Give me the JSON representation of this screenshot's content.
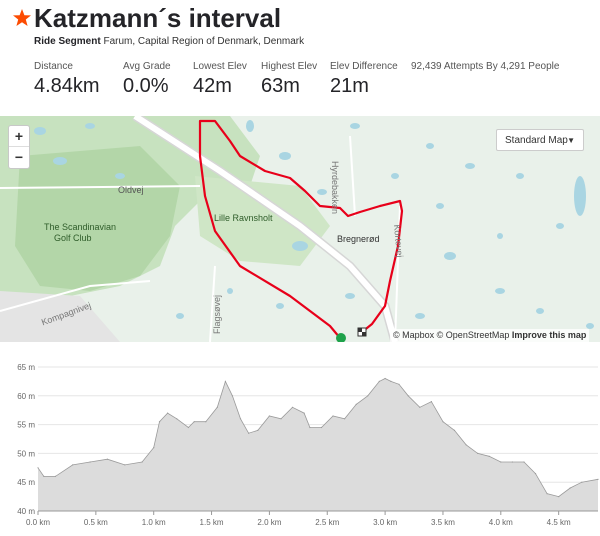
{
  "segment": {
    "title": "Katzmann´s interval",
    "type_label": "Ride Segment",
    "location": "Farum, Capital Region of Denmark, Denmark"
  },
  "stats": [
    {
      "label": "Distance",
      "value": "4.84km"
    },
    {
      "label": "Avg Grade",
      "value": "0.0%"
    },
    {
      "label": "Lowest Elev",
      "value": "42m"
    },
    {
      "label": "Highest Elev",
      "value": "63m"
    },
    {
      "label": "Elev Difference",
      "value": "21m"
    }
  ],
  "attempts": "92,439 Attempts By 4,291 People",
  "map": {
    "zoom_in": "+",
    "zoom_out": "−",
    "style_select": "Standard Map",
    "labels": {
      "oldvej": "Oldvej",
      "golf1": "The Scandinavian",
      "golf2": "Golf Club",
      "lille": "Lille Ravnsholt",
      "bregnerod": "Bregnerød",
      "hyrde": "Hyrdebakken",
      "flagvej": "Flagsøvej",
      "kompagni": "Kompagnivej",
      "kortevej": "Kortevej"
    },
    "attribution": {
      "mapbox": "© Mapbox",
      "osm": "© OpenStreetMap",
      "improve": "Improve this map"
    },
    "colors": {
      "route": "#e8001a",
      "start": "#1ea24a",
      "water": "#a8d4e0",
      "forest": "#bcdcb4"
    }
  },
  "chart_data": {
    "type": "area",
    "xlabel": "",
    "ylabel": "",
    "xlim": [
      0,
      4.84
    ],
    "ylim": [
      40,
      65
    ],
    "x_ticks": [
      "0.0 km",
      "0.5 km",
      "1.0 km",
      "1.5 km",
      "2.0 km",
      "2.5 km",
      "3.0 km",
      "3.5 km",
      "4.0 km",
      "4.5 km"
    ],
    "y_ticks": [
      "40 m",
      "45 m",
      "50 m",
      "55 m",
      "60 m",
      "65 m"
    ],
    "grid": true,
    "x": [
      0.0,
      0.05,
      0.15,
      0.3,
      0.45,
      0.6,
      0.75,
      0.9,
      1.0,
      1.05,
      1.12,
      1.2,
      1.3,
      1.35,
      1.45,
      1.55,
      1.62,
      1.68,
      1.75,
      1.82,
      1.9,
      2.0,
      2.1,
      2.2,
      2.3,
      2.35,
      2.45,
      2.55,
      2.65,
      2.75,
      2.85,
      2.95,
      3.0,
      3.05,
      3.12,
      3.2,
      3.3,
      3.4,
      3.5,
      3.6,
      3.7,
      3.8,
      3.9,
      4.0,
      4.1,
      4.2,
      4.3,
      4.4,
      4.5,
      4.6,
      4.7,
      4.84
    ],
    "y": [
      47.5,
      46,
      46,
      48,
      48.5,
      49,
      48,
      48.5,
      51,
      55.5,
      57,
      56,
      54.5,
      55.5,
      55.5,
      58,
      62.5,
      60,
      56,
      53.5,
      54,
      56.5,
      56,
      58,
      57,
      54.5,
      54.5,
      56.5,
      56,
      58.5,
      60,
      62.5,
      63,
      62.5,
      62,
      60,
      58,
      59,
      55.5,
      54,
      51.5,
      50,
      49.5,
      48.5,
      48.5,
      48.5,
      46.5,
      43,
      42.5,
      44,
      45,
      45.5
    ],
    "colors": {
      "fill": "#dcdcdc",
      "stroke": "#9a9a9a"
    }
  }
}
